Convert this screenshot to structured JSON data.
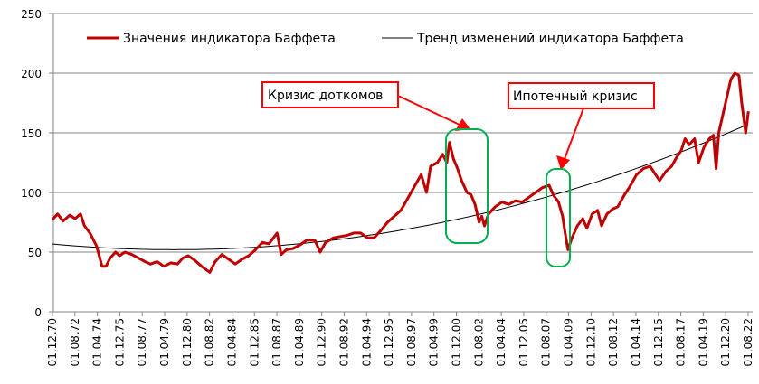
{
  "chart_data": {
    "type": "line",
    "title": "",
    "xlabel": "",
    "ylabel": "",
    "ylim": [
      0,
      250
    ],
    "yticks": [
      "0",
      "50",
      "100",
      "150",
      "200",
      "250"
    ],
    "ytick_values": [
      0,
      50,
      100,
      150,
      200,
      250
    ],
    "grid": true,
    "legend_position": "top",
    "x_range_years": [
      1970.92,
      2022.58
    ],
    "xtick_labels": [
      "01.12.70",
      "01.08.72",
      "01.04.74",
      "01.12.75",
      "01.08.77",
      "01.04.79",
      "01.12.80",
      "01.08.82",
      "01.04.84",
      "01.12.85",
      "01.08.87",
      "01.04.89",
      "01.12.90",
      "01.08.92",
      "01.04.94",
      "01.12.95",
      "01.08.97",
      "01.04.99",
      "01.12.00",
      "01.08.02",
      "01.04.04",
      "01.12.05",
      "01.08.07",
      "01.04.09",
      "01.12.10",
      "01.08.12",
      "01.04.14",
      "01.12.15",
      "01.08.17",
      "01.04.19",
      "01.12.20",
      "01.08.22"
    ],
    "series": [
      {
        "name": "Значения индикатора Баффета",
        "color": "#C00000",
        "points": [
          [
            1970.9,
            77
          ],
          [
            1971.3,
            82
          ],
          [
            1971.7,
            76
          ],
          [
            1972.2,
            81
          ],
          [
            1972.6,
            78
          ],
          [
            1973.0,
            82
          ],
          [
            1973.3,
            72
          ],
          [
            1973.7,
            66
          ],
          [
            1974.2,
            55
          ],
          [
            1974.6,
            38
          ],
          [
            1974.9,
            38
          ],
          [
            1975.2,
            45
          ],
          [
            1975.6,
            50
          ],
          [
            1975.9,
            47
          ],
          [
            1976.3,
            50
          ],
          [
            1976.8,
            48
          ],
          [
            1977.3,
            45
          ],
          [
            1977.8,
            42
          ],
          [
            1978.2,
            40
          ],
          [
            1978.7,
            42
          ],
          [
            1979.2,
            38
          ],
          [
            1979.7,
            41
          ],
          [
            1980.2,
            40
          ],
          [
            1980.6,
            45
          ],
          [
            1981.0,
            47
          ],
          [
            1981.5,
            43
          ],
          [
            1982.0,
            38
          ],
          [
            1982.6,
            33
          ],
          [
            1983.0,
            42
          ],
          [
            1983.5,
            48
          ],
          [
            1984.0,
            44
          ],
          [
            1984.5,
            40
          ],
          [
            1985.0,
            44
          ],
          [
            1985.5,
            47
          ],
          [
            1986.0,
            52
          ],
          [
            1986.5,
            58
          ],
          [
            1987.0,
            57
          ],
          [
            1987.6,
            66
          ],
          [
            1987.9,
            48
          ],
          [
            1988.3,
            52
          ],
          [
            1988.8,
            53
          ],
          [
            1989.3,
            56
          ],
          [
            1989.8,
            60
          ],
          [
            1990.4,
            60
          ],
          [
            1990.8,
            50
          ],
          [
            1991.2,
            58
          ],
          [
            1991.8,
            62
          ],
          [
            1992.3,
            63
          ],
          [
            1992.8,
            64
          ],
          [
            1993.3,
            66
          ],
          [
            1993.8,
            66
          ],
          [
            1994.3,
            62
          ],
          [
            1994.8,
            62
          ],
          [
            1995.3,
            68
          ],
          [
            1995.8,
            75
          ],
          [
            1996.3,
            80
          ],
          [
            1996.8,
            85
          ],
          [
            1997.3,
            95
          ],
          [
            1997.8,
            105
          ],
          [
            1998.3,
            115
          ],
          [
            1998.7,
            100
          ],
          [
            1999.0,
            122
          ],
          [
            1999.5,
            125
          ],
          [
            1999.9,
            132
          ],
          [
            2000.2,
            125
          ],
          [
            2000.4,
            142
          ],
          [
            2000.7,
            128
          ],
          [
            2001.0,
            120
          ],
          [
            2001.3,
            110
          ],
          [
            2001.7,
            100
          ],
          [
            2002.0,
            98
          ],
          [
            2002.3,
            90
          ],
          [
            2002.6,
            75
          ],
          [
            2002.8,
            80
          ],
          [
            2003.0,
            72
          ],
          [
            2003.3,
            82
          ],
          [
            2003.8,
            88
          ],
          [
            2004.3,
            92
          ],
          [
            2004.8,
            90
          ],
          [
            2005.3,
            93
          ],
          [
            2005.8,
            92
          ],
          [
            2006.3,
            96
          ],
          [
            2006.8,
            100
          ],
          [
            2007.3,
            104
          ],
          [
            2007.8,
            106
          ],
          [
            2008.1,
            98
          ],
          [
            2008.5,
            92
          ],
          [
            2008.8,
            80
          ],
          [
            2009.0,
            65
          ],
          [
            2009.2,
            52
          ],
          [
            2009.5,
            62
          ],
          [
            2009.9,
            72
          ],
          [
            2010.3,
            78
          ],
          [
            2010.6,
            70
          ],
          [
            2011.0,
            82
          ],
          [
            2011.4,
            85
          ],
          [
            2011.7,
            72
          ],
          [
            2012.1,
            82
          ],
          [
            2012.5,
            86
          ],
          [
            2012.9,
            88
          ],
          [
            2013.4,
            98
          ],
          [
            2013.8,
            105
          ],
          [
            2014.3,
            115
          ],
          [
            2014.8,
            120
          ],
          [
            2015.3,
            122
          ],
          [
            2015.7,
            115
          ],
          [
            2016.0,
            110
          ],
          [
            2016.5,
            118
          ],
          [
            2016.9,
            122
          ],
          [
            2017.3,
            130
          ],
          [
            2017.6,
            135
          ],
          [
            2017.9,
            145
          ],
          [
            2018.2,
            140
          ],
          [
            2018.6,
            145
          ],
          [
            2018.9,
            125
          ],
          [
            2019.3,
            138
          ],
          [
            2019.7,
            145
          ],
          [
            2020.0,
            148
          ],
          [
            2020.2,
            120
          ],
          [
            2020.4,
            150
          ],
          [
            2020.7,
            165
          ],
          [
            2021.0,
            180
          ],
          [
            2021.3,
            195
          ],
          [
            2021.6,
            200
          ],
          [
            2021.9,
            198
          ],
          [
            2022.1,
            175
          ],
          [
            2022.4,
            150
          ],
          [
            2022.6,
            168
          ]
        ]
      },
      {
        "name": "Тренд изменений индикатора Баффета",
        "color": "#000000",
        "trend": {
          "kind": "quadratic",
          "vertex_year": 1980,
          "vertex_value": 52,
          "a": 0.058
        }
      }
    ],
    "annotations": [
      {
        "text": "Кризис доткомов",
        "highlight_years": [
          2000.2,
          2003.3
        ],
        "highlight_values": [
          57,
          152
        ]
      },
      {
        "text": "Ипотечный кризис",
        "highlight_years": [
          2007.8,
          2009.5
        ],
        "highlight_values": [
          38,
          120
        ]
      }
    ]
  }
}
